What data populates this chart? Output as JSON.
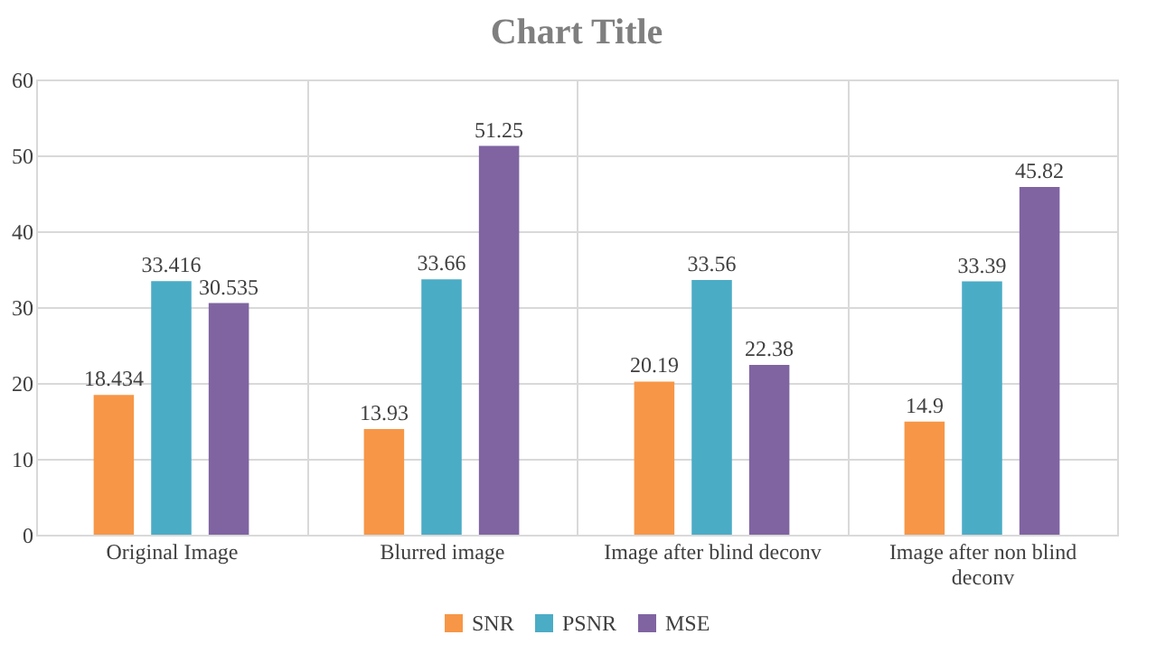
{
  "chart_data": {
    "type": "bar",
    "title": "Chart Title",
    "categories": [
      "Original Image",
      "Blurred image",
      "Image after blind deconv",
      "Image after non blind deconv"
    ],
    "series": [
      {
        "name": "SNR",
        "color": "#f79646",
        "values": [
          18.434,
          13.93,
          20.19,
          14.9
        ]
      },
      {
        "name": "PSNR",
        "color": "#4bacc6",
        "values": [
          33.416,
          33.66,
          33.56,
          33.39
        ]
      },
      {
        "name": "MSE",
        "color": "#8064a2",
        "values": [
          30.535,
          51.25,
          22.38,
          45.82
        ]
      }
    ],
    "ylim": [
      0,
      60
    ],
    "yticks": [
      0,
      10,
      20,
      30,
      40,
      50,
      60
    ],
    "grid": true,
    "legend": "bottom",
    "data_labels": true
  }
}
